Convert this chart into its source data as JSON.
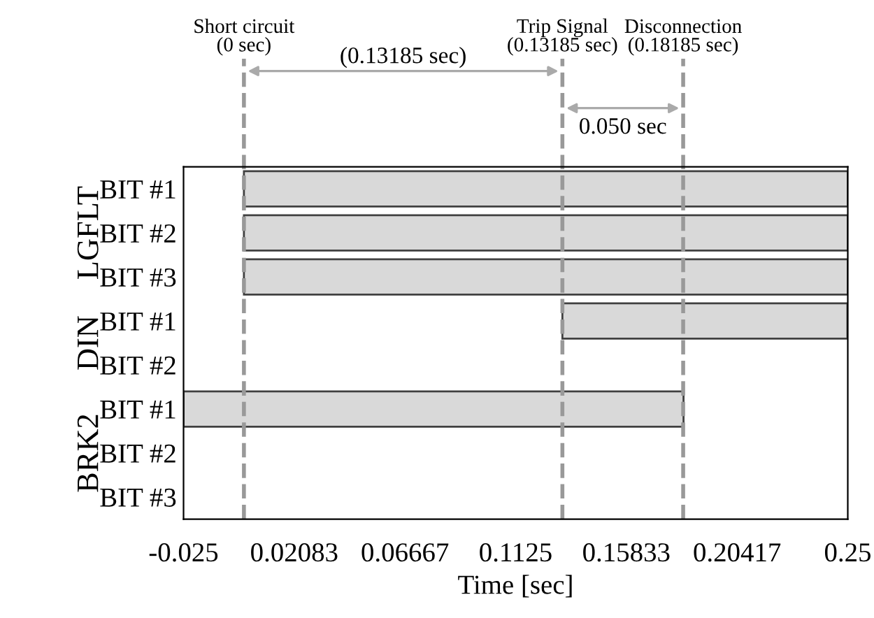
{
  "chart_data": {
    "type": "bar",
    "orientation": "horizontal",
    "xlabel": "Time [sec]",
    "categories": [
      "BIT #1",
      "BIT #2",
      "BIT #3",
      "BIT #1",
      "BIT #2",
      "BIT #1",
      "BIT #2",
      "BIT #3"
    ],
    "base": [
      0,
      0,
      0,
      0.13185,
      null,
      -0.025,
      null,
      null
    ],
    "values": [
      0.25,
      0.25,
      0.25,
      0.118,
      null,
      0.207,
      null,
      null
    ],
    "color": "#d9d9d9",
    "xlim": [
      -0.025,
      0.25
    ],
    "xticks": [
      -0.025,
      0.02083,
      0.06667,
      0.1125,
      0.15833,
      0.20417,
      0.25
    ],
    "ref_lines": [
      {
        "axis": "x",
        "value": 0,
        "label": "Short circuit\n(0 sec)",
        "color": "#999999",
        "line_style": "dashed"
      },
      {
        "axis": "x",
        "value": 0.13185,
        "label": "Trip Signal\n(0.13185 sec)",
        "color": "#999999",
        "line_style": "dashed"
      },
      {
        "axis": "x",
        "value": 0.18185,
        "label": "Disconnection\n(0.18185 sec)",
        "color": "#999999",
        "line_style": "dashed"
      }
    ],
    "annotations": [
      "LGFLT",
      "DIN",
      "BRK2",
      "(0.13185 sec)",
      "0.050 sec"
    ],
    "grid": false
  }
}
